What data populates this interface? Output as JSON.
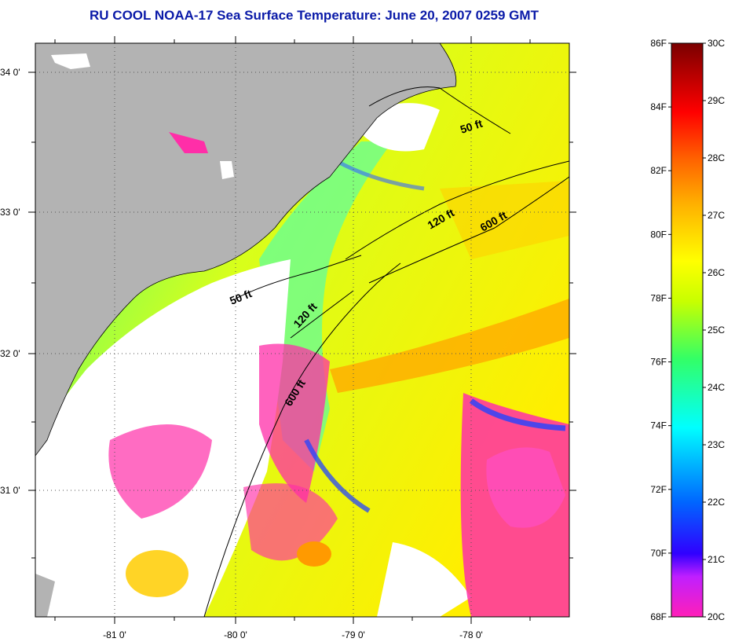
{
  "title": "RU COOL  NOAA-17  Sea Surface Temperature:  June 20, 2007 0259 GMT",
  "map": {
    "lat_labels": [
      "34 0'",
      "33 0'",
      "32 0'",
      "31 0'"
    ],
    "lon_labels": [
      "-81 0'",
      "-80 0'",
      "-79 0'",
      "-78 0'"
    ],
    "contours": [
      {
        "label": "50 ft",
        "rotate": -18
      },
      {
        "label": "120 ft",
        "rotate": -30
      },
      {
        "label": "600 ft",
        "rotate": -30
      },
      {
        "label": "50 ft",
        "rotate": -22
      },
      {
        "label": "120 ft",
        "rotate": -48
      },
      {
        "label": "600 ft",
        "rotate": -58
      }
    ],
    "colors": {
      "land": "#b3b3b3",
      "cloud": "#ffffff",
      "coastline": "#000000"
    }
  },
  "colorbar": {
    "fahrenheit_labels": [
      "86F",
      "84F",
      "82F",
      "80F",
      "78F",
      "76F",
      "74F",
      "72F",
      "70F",
      "68F"
    ],
    "celsius_labels": [
      "30C",
      "29C",
      "28C",
      "27C",
      "26C",
      "25C",
      "24C",
      "23C",
      "22C",
      "21C",
      "20C"
    ],
    "range_c": [
      20,
      30
    ],
    "range_f": [
      68,
      86
    ],
    "colormap": [
      "#ff1fb8",
      "#9a1fff",
      "#0000ff",
      "#0066ff",
      "#00ffff",
      "#33ff66",
      "#c8ff00",
      "#ffff00",
      "#ffb000",
      "#ff6000",
      "#ff0000",
      "#7a0000"
    ]
  }
}
